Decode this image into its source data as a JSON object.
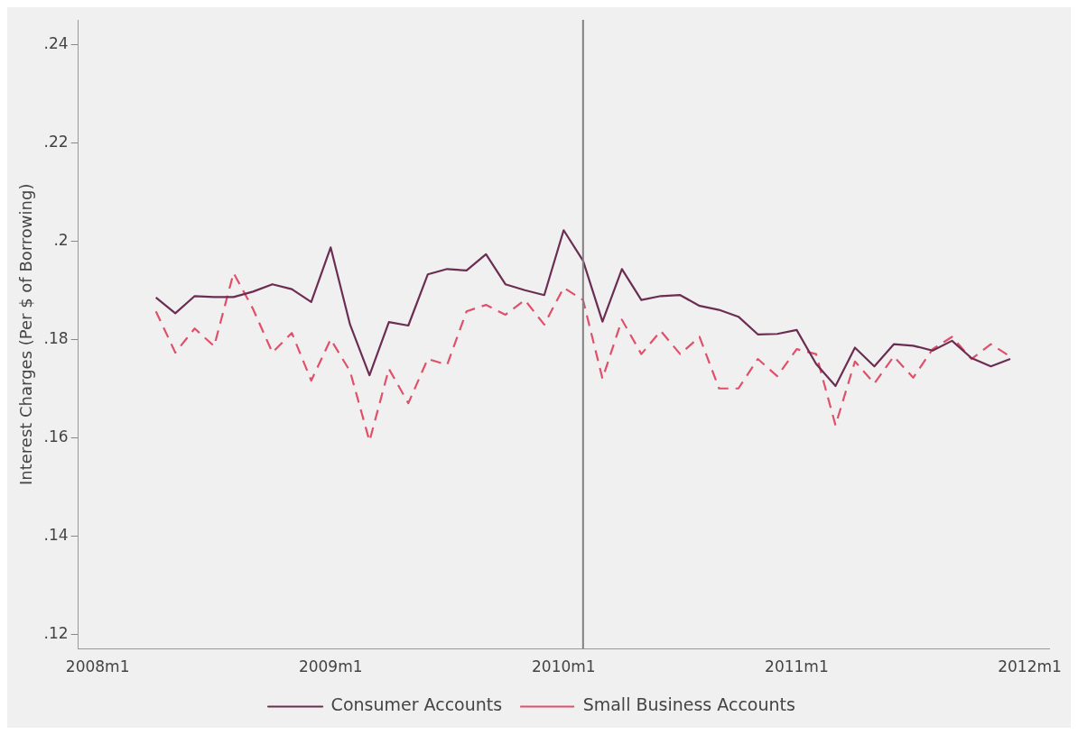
{
  "chart_data": {
    "type": "line",
    "ylabel": "Interest Charges (Per $ of Borrowing)",
    "x": [
      "2008-04",
      "2008-05",
      "2008-06",
      "2008-07",
      "2008-08",
      "2008-09",
      "2008-10",
      "2008-11",
      "2008-12",
      "2009-01",
      "2009-02",
      "2009-03",
      "2009-04",
      "2009-05",
      "2009-06",
      "2009-07",
      "2009-08",
      "2009-09",
      "2009-10",
      "2009-11",
      "2009-12",
      "2010-01",
      "2010-02",
      "2010-03",
      "2010-04",
      "2010-05",
      "2010-06",
      "2010-07",
      "2010-08",
      "2010-09",
      "2010-10",
      "2010-11",
      "2010-12",
      "2011-01",
      "2011-02",
      "2011-03",
      "2011-04",
      "2011-05",
      "2011-06",
      "2011-07",
      "2011-08",
      "2011-09",
      "2011-10",
      "2011-11",
      "2011-12"
    ],
    "series": [
      {
        "name": "Consumer Accounts",
        "color": "#6b2d52",
        "line_style": "solid",
        "values": [
          0.1885,
          0.1853,
          0.1888,
          0.1886,
          0.1886,
          0.1897,
          0.1912,
          0.1902,
          0.1876,
          0.1987,
          0.183,
          0.1727,
          0.1835,
          0.1828,
          0.1932,
          0.1943,
          0.194,
          0.1973,
          0.1912,
          0.19,
          0.189,
          0.2022,
          0.196,
          0.1836,
          0.1943,
          0.188,
          0.1888,
          0.189,
          0.1868,
          0.186,
          0.1846,
          0.181,
          0.1811,
          0.1819,
          0.175,
          0.1705,
          0.1783,
          0.1745,
          0.179,
          0.1787,
          0.1777,
          0.1797,
          0.1762,
          0.1745,
          0.176
        ]
      },
      {
        "name": "Small Business Accounts",
        "color": "#e0506a",
        "line_style": "dashed",
        "values": [
          0.1857,
          0.1773,
          0.1822,
          0.1786,
          0.1935,
          0.1862,
          0.1773,
          0.1813,
          0.1716,
          0.18,
          0.1735,
          0.1593,
          0.174,
          0.167,
          0.176,
          0.1748,
          0.1857,
          0.187,
          0.185,
          0.188,
          0.183,
          0.1905,
          0.188,
          0.172,
          0.184,
          0.177,
          0.1817,
          0.177,
          0.1805,
          0.17,
          0.17,
          0.176,
          0.1725,
          0.178,
          0.177,
          0.1625,
          0.1755,
          0.171,
          0.1765,
          0.1722,
          0.178,
          0.1805,
          0.176,
          0.179,
          0.1765
        ]
      }
    ],
    "xlim": [
      "2007-12",
      "2012-02"
    ],
    "xticks": [
      {
        "value": "2008-01",
        "label": "2008m1"
      },
      {
        "value": "2009-01",
        "label": "2009m1"
      },
      {
        "value": "2010-01",
        "label": "2010m1"
      },
      {
        "value": "2011-01",
        "label": "2011m1"
      },
      {
        "value": "2012-01",
        "label": "2012m1"
      }
    ],
    "ylim": [
      0.117,
      0.245
    ],
    "yticks": [
      {
        "value": 0.12,
        "label": ".12"
      },
      {
        "value": 0.14,
        "label": ".14"
      },
      {
        "value": 0.16,
        "label": ".16"
      },
      {
        "value": 0.18,
        "label": ".18"
      },
      {
        "value": 0.2,
        "label": ".2"
      },
      {
        "value": 0.22,
        "label": ".22"
      },
      {
        "value": 0.24,
        "label": ".24"
      }
    ],
    "ref_lines": [
      {
        "axis": "x",
        "value": "2010-02",
        "color": "#808080"
      }
    ],
    "grid": false,
    "legend": "bottom"
  }
}
